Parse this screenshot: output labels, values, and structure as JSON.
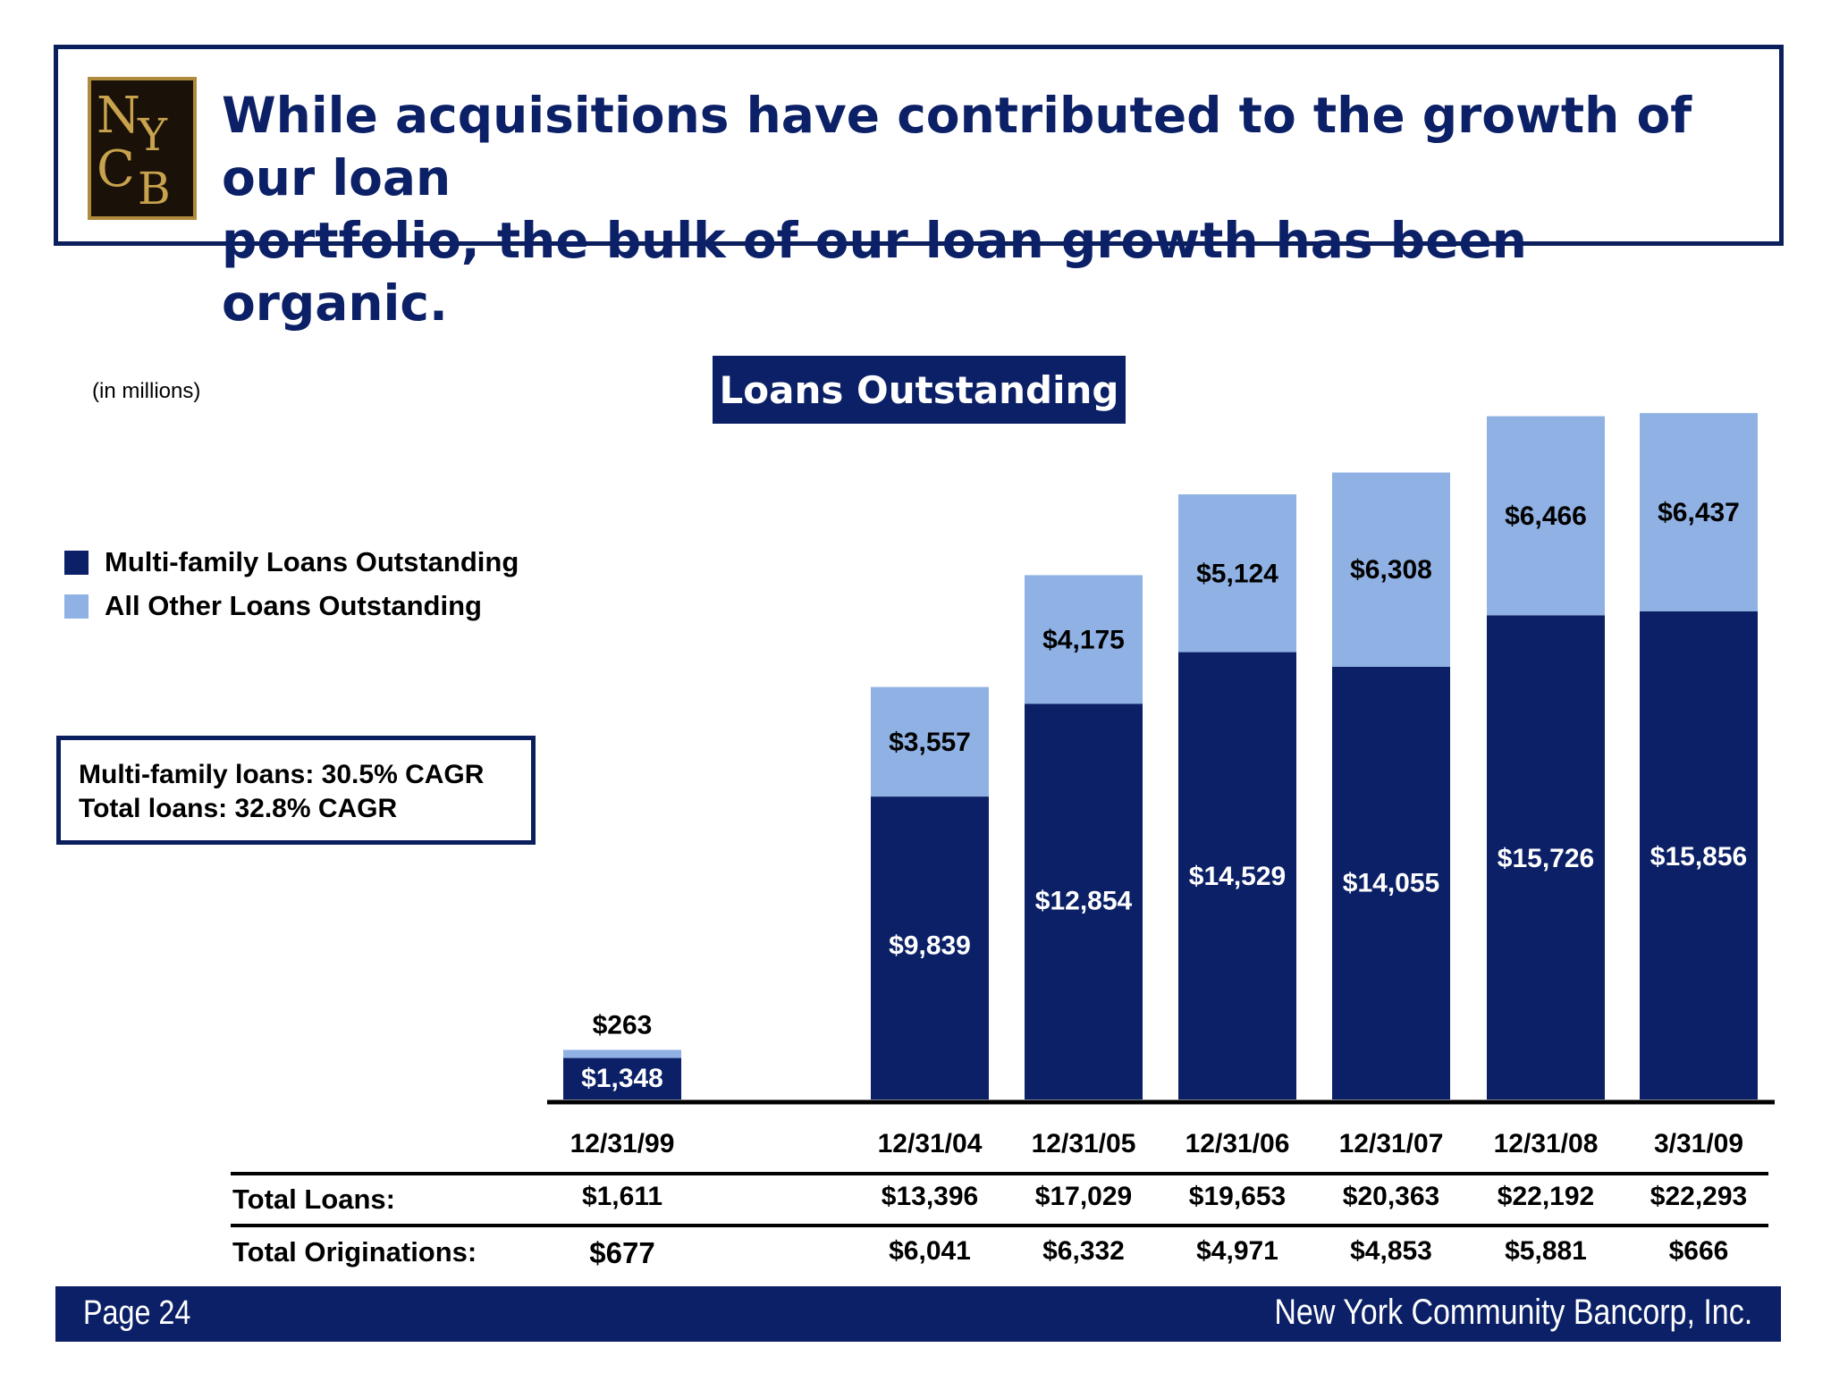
{
  "header": {
    "logo_text": "NYCB",
    "headline_line1": "While acquisitions have contributed to the growth of our loan",
    "headline_line2": "portfolio, the bulk of our loan growth has been organic."
  },
  "units_note": "(in millions)",
  "legend": [
    {
      "label": "Multi-family Loans Outstanding",
      "color": "#0b2066"
    },
    {
      "label": "All Other Loans Outstanding",
      "color": "#8fb1e3"
    }
  ],
  "cagr": {
    "line1": "Multi-family loans:  30.5% CAGR",
    "line2": "Total loans:  32.8% CAGR"
  },
  "chart_data": {
    "type": "bar",
    "stacked": true,
    "title": "Loans Outstanding",
    "categories": [
      "12/31/99",
      "12/31/04",
      "12/31/05",
      "12/31/06",
      "12/31/07",
      "12/31/08",
      "3/31/09"
    ],
    "series": [
      {
        "name": "Multi-family Loans Outstanding",
        "color": "#0b2066",
        "values": [
          1348,
          9839,
          12854,
          14529,
          14055,
          15726,
          15856
        ],
        "labels": [
          "$1,348",
          "$9,839",
          "$12,854",
          "$14,529",
          "$14,055",
          "$15,726",
          "$15,856"
        ]
      },
      {
        "name": "All Other Loans Outstanding",
        "color": "#8fb1e3",
        "values": [
          263,
          3557,
          4175,
          5124,
          6308,
          6466,
          6437
        ],
        "labels": [
          "$263",
          "$3,557",
          "$4,175",
          "$5,124",
          "$6,308",
          "$6,466",
          "$6,437"
        ]
      }
    ],
    "ylim": [
      0,
      22500
    ],
    "grid": false,
    "legend_position": "left"
  },
  "table": {
    "total_loans_label": "Total Loans:",
    "total_loans": [
      "$1,611",
      "$13,396",
      "$17,029",
      "$19,653",
      "$20,363",
      "$22,192",
      "$22,293"
    ],
    "total_originations_label": "Total Originations:",
    "total_originations": [
      "$677",
      "$6,041",
      "$6,332",
      "$4,971",
      "$4,853",
      "$5,881",
      "$666"
    ]
  },
  "footer": {
    "page": "Page 24",
    "company": "New York Community Bancorp, Inc."
  }
}
